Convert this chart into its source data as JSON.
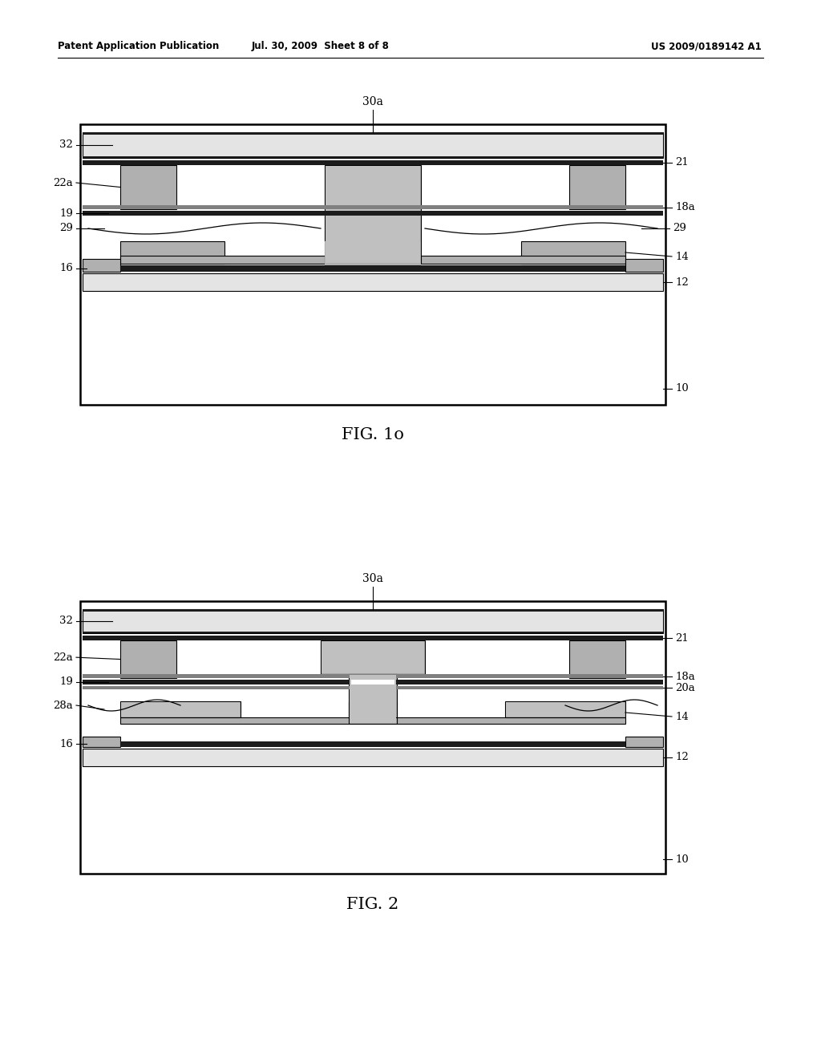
{
  "header_left": "Patent Application Publication",
  "header_mid": "Jul. 30, 2009  Sheet 8 of 8",
  "header_right": "US 2009/0189142 A1",
  "fig1_label": "FIG. 1o",
  "fig2_label": "FIG. 2",
  "bg": "#ffffff",
  "lc": "#000000",
  "gray_med": "#b0b0b0",
  "gray_dark": "#808080",
  "gray_light": "#d8d8d8",
  "black_layer": "#1c1c1c",
  "dot_bg": "#e4e4e4"
}
